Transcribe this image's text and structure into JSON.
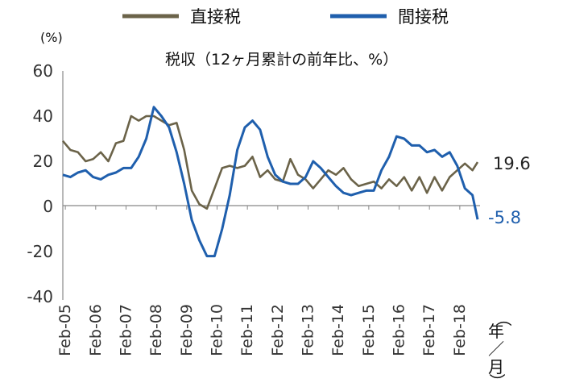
{
  "legend": [
    {
      "label": "直接税",
      "color": "#6b6349"
    },
    {
      "label": "間接税",
      "color": "#1f5fad"
    }
  ],
  "unit_label": "(%)",
  "chart_title": "税収（12ヶ月累計の前年比、%）",
  "period_label": [
    "（",
    "年",
    "／",
    "月",
    "）"
  ],
  "end_labels": [
    {
      "text": "19.6",
      "color": "#222222"
    },
    {
      "text": "-5.8",
      "color": "#1f5fad"
    }
  ],
  "chart_data": {
    "type": "line",
    "title": "税収（12ヶ月累計の前年比、%）",
    "ylabel": "(%)",
    "xlabel": "",
    "ylim": [
      -40,
      60
    ],
    "yticks": [
      60,
      40,
      20,
      0,
      -20,
      -40
    ],
    "ytick_labels": [
      "60",
      "40",
      "20",
      "0",
      "-20",
      "-40"
    ],
    "xlim": [
      2005.0,
      2018.75
    ],
    "xticks": [
      2005.083,
      2006.083,
      2007.083,
      2008.083,
      2009.083,
      2010.083,
      2011.083,
      2012.083,
      2013.083,
      2014.083,
      2015.083,
      2016.083,
      2017.083,
      2018.083
    ],
    "xtick_labels": [
      "Feb-05",
      "Feb-06",
      "Feb-07",
      "Feb-08",
      "Feb-09",
      "Feb-10",
      "Feb-11",
      "Feb-12",
      "Feb-13",
      "Feb-14",
      "Feb-15",
      "Feb-16",
      "Feb-17",
      "Feb-18"
    ],
    "grid": false,
    "legend_position": "top",
    "series": [
      {
        "name": "直接税",
        "color": "#6b6349",
        "x": [
          2005.0,
          2005.25,
          2005.5,
          2005.75,
          2006.0,
          2006.25,
          2006.5,
          2006.75,
          2007.0,
          2007.25,
          2007.5,
          2007.75,
          2008.0,
          2008.25,
          2008.5,
          2008.75,
          2009.0,
          2009.25,
          2009.5,
          2009.75,
          2010.0,
          2010.25,
          2010.5,
          2010.75,
          2011.0,
          2011.25,
          2011.5,
          2011.75,
          2012.0,
          2012.25,
          2012.5,
          2012.75,
          2013.0,
          2013.25,
          2013.5,
          2013.75,
          2014.0,
          2014.25,
          2014.5,
          2014.75,
          2015.0,
          2015.25,
          2015.5,
          2015.75,
          2016.0,
          2016.25,
          2016.5,
          2016.75,
          2017.0,
          2017.25,
          2017.5,
          2017.75,
          2018.0,
          2018.25,
          2018.5,
          2018.67
        ],
        "values": [
          29,
          25,
          24,
          20,
          21,
          24,
          20,
          28,
          29,
          40,
          38,
          40,
          40,
          38,
          36,
          37,
          25,
          7,
          1,
          -1,
          8,
          17,
          18,
          17,
          18,
          22,
          13,
          16,
          12,
          11,
          21,
          14,
          12,
          8,
          12,
          16,
          14,
          17,
          12,
          9,
          10,
          11,
          8,
          12,
          9,
          13,
          7,
          13,
          6,
          13,
          7,
          13,
          16,
          19,
          16,
          19.6
        ]
      },
      {
        "name": "間接税",
        "color": "#1f5fad",
        "x": [
          2005.0,
          2005.25,
          2005.5,
          2005.75,
          2006.0,
          2006.25,
          2006.5,
          2006.75,
          2007.0,
          2007.25,
          2007.5,
          2007.75,
          2008.0,
          2008.25,
          2008.5,
          2008.75,
          2009.0,
          2009.25,
          2009.5,
          2009.75,
          2010.0,
          2010.25,
          2010.5,
          2010.75,
          2011.0,
          2011.25,
          2011.5,
          2011.75,
          2012.0,
          2012.25,
          2012.5,
          2012.75,
          2013.0,
          2013.25,
          2013.5,
          2013.75,
          2014.0,
          2014.25,
          2014.5,
          2014.75,
          2015.0,
          2015.25,
          2015.5,
          2015.75,
          2016.0,
          2016.25,
          2016.5,
          2016.75,
          2017.0,
          2017.25,
          2017.5,
          2017.75,
          2018.0,
          2018.25,
          2018.5,
          2018.67
        ],
        "values": [
          14,
          13,
          15,
          16,
          13,
          12,
          14,
          15,
          17,
          17,
          22,
          30,
          44,
          40,
          35,
          24,
          10,
          -6,
          -15,
          -22,
          -22,
          -10,
          5,
          25,
          35,
          38,
          34,
          22,
          14,
          11,
          10,
          10,
          13,
          20,
          17,
          13,
          9,
          6,
          5,
          6,
          7,
          7,
          16,
          22,
          31,
          30,
          27,
          27,
          24,
          25,
          22,
          24,
          18,
          8,
          5,
          -5.8
        ]
      }
    ]
  }
}
